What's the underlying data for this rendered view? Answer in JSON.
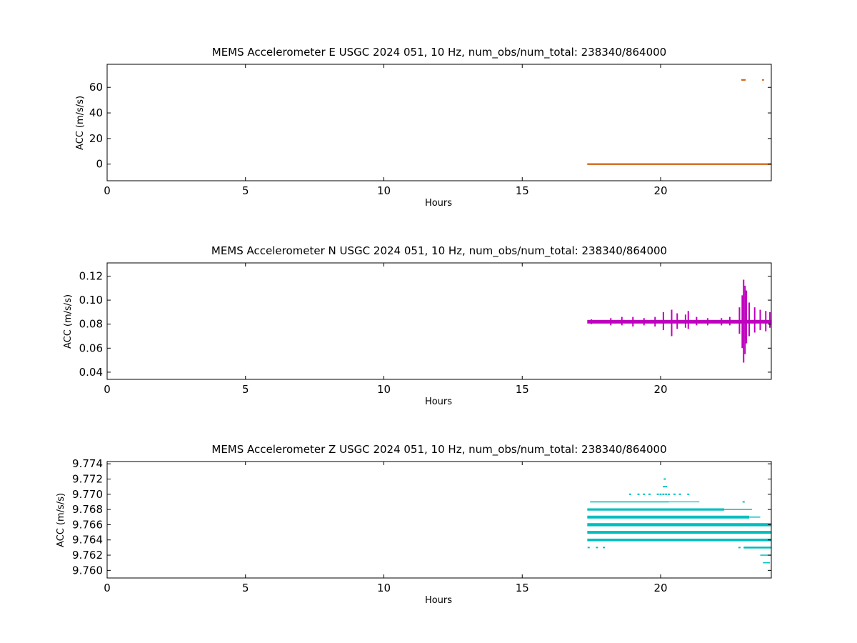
{
  "chart_data": [
    {
      "type": "scatter",
      "title": "MEMS Accelerometer E USGC 2024 051, 10 Hz, num_obs/num_total: 238340/864000",
      "xlabel": "Hours",
      "ylabel": "ACC (m/s/s)",
      "xlim": [
        0,
        24
      ],
      "ylim": [
        -13,
        78
      ],
      "xticks": [
        0,
        5,
        10,
        15,
        20
      ],
      "yticks": [
        0,
        20,
        40,
        60
      ],
      "ytick_labels": [
        "0",
        "20",
        "40",
        "60"
      ],
      "grid": false,
      "color": "#d2691e",
      "series": [
        {
          "bands": [
            {
              "x0": 17.35,
              "x1": 24,
              "y": 0.0,
              "thick": 2.4
            }
          ],
          "points": [
            {
              "x": 22.95,
              "y": 65.8
            },
            {
              "x": 22.98,
              "y": 65.8
            },
            {
              "x": 23.01,
              "y": 65.8
            },
            {
              "x": 23.04,
              "y": 65.8
            },
            {
              "x": 23.7,
              "y": 65.8
            }
          ],
          "values_note": "dense 10 Hz samples, constant near 0 m/s/s from 17.35 h to 24 h"
        }
      ]
    },
    {
      "type": "scatter",
      "title": "MEMS Accelerometer N USGC 2024 051, 10 Hz, num_obs/num_total: 238340/864000",
      "xlabel": "Hours",
      "ylabel": "ACC (m/s/s)",
      "xlim": [
        0,
        24
      ],
      "ylim": [
        0.034,
        0.131
      ],
      "xticks": [
        0,
        5,
        10,
        15,
        20
      ],
      "yticks": [
        0.04,
        0.06,
        0.08,
        0.1,
        0.12
      ],
      "ytick_labels": [
        "0.04",
        "0.06",
        "0.08",
        "0.10",
        "0.12"
      ],
      "grid": false,
      "color": "#bf00bf",
      "series": [
        {
          "bands": [
            {
              "x0": 17.35,
              "x1": 24,
              "y": 0.082,
              "halfwidth": 0.0015
            }
          ],
          "spikes": [
            {
              "x": 17.5,
              "lo": 0.08,
              "hi": 0.084
            },
            {
              "x": 18.2,
              "lo": 0.079,
              "hi": 0.085
            },
            {
              "x": 18.6,
              "lo": 0.079,
              "hi": 0.086
            },
            {
              "x": 19.0,
              "lo": 0.078,
              "hi": 0.086
            },
            {
              "x": 19.4,
              "lo": 0.079,
              "hi": 0.085
            },
            {
              "x": 19.8,
              "lo": 0.078,
              "hi": 0.086
            },
            {
              "x": 20.1,
              "lo": 0.075,
              "hi": 0.09
            },
            {
              "x": 20.4,
              "lo": 0.07,
              "hi": 0.092
            },
            {
              "x": 20.6,
              "lo": 0.076,
              "hi": 0.089
            },
            {
              "x": 20.9,
              "lo": 0.077,
              "hi": 0.088
            },
            {
              "x": 21.0,
              "lo": 0.076,
              "hi": 0.091
            },
            {
              "x": 21.3,
              "lo": 0.079,
              "hi": 0.086
            },
            {
              "x": 21.7,
              "lo": 0.079,
              "hi": 0.085
            },
            {
              "x": 22.2,
              "lo": 0.079,
              "hi": 0.085
            },
            {
              "x": 22.5,
              "lo": 0.079,
              "hi": 0.086
            },
            {
              "x": 22.85,
              "lo": 0.072,
              "hi": 0.094
            },
            {
              "x": 22.95,
              "lo": 0.06,
              "hi": 0.104
            },
            {
              "x": 23.0,
              "lo": 0.048,
              "hi": 0.117
            },
            {
              "x": 23.05,
              "lo": 0.055,
              "hi": 0.112
            },
            {
              "x": 23.1,
              "lo": 0.064,
              "hi": 0.108
            },
            {
              "x": 23.2,
              "lo": 0.07,
              "hi": 0.098
            },
            {
              "x": 23.4,
              "lo": 0.073,
              "hi": 0.094
            },
            {
              "x": 23.6,
              "lo": 0.075,
              "hi": 0.092
            },
            {
              "x": 23.8,
              "lo": 0.074,
              "hi": 0.091
            },
            {
              "x": 23.95,
              "lo": 0.077,
              "hi": 0.09
            }
          ]
        }
      ]
    },
    {
      "type": "scatter",
      "title": "MEMS Accelerometer Z USGC 2024 051, 10 Hz, num_obs/num_total: 238340/864000",
      "xlabel": "Hours",
      "ylabel": "ACC (m/s/s)",
      "xlim": [
        0,
        24
      ],
      "ylim": [
        9.759,
        9.7743
      ],
      "xticks": [
        0,
        5,
        10,
        15,
        20
      ],
      "yticks": [
        9.76,
        9.762,
        9.764,
        9.766,
        9.768,
        9.77,
        9.772,
        9.774
      ],
      "ytick_labels": [
        "9.760",
        "9.762",
        "9.764",
        "9.766",
        "9.768",
        "9.770",
        "9.772",
        "9.774"
      ],
      "grid": false,
      "color": "#00bfbf",
      "series": [
        {
          "bands": [
            {
              "x0": 17.45,
              "x1": 20.3,
              "y": 9.769,
              "thick": 1.6
            },
            {
              "x0": 20.3,
              "x1": 21.4,
              "y": 9.769,
              "thick": 1.2
            },
            {
              "x0": 17.35,
              "x1": 22.3,
              "y": 9.768,
              "thick": 3.2
            },
            {
              "x0": 22.3,
              "x1": 23.3,
              "y": 9.768,
              "thick": 1.5
            },
            {
              "x0": 17.35,
              "x1": 23.2,
              "y": 9.767,
              "thick": 4.0
            },
            {
              "x0": 23.2,
              "x1": 23.6,
              "y": 9.767,
              "thick": 1.5
            },
            {
              "x0": 17.35,
              "x1": 24,
              "y": 9.766,
              "thick": 4.4
            },
            {
              "x0": 17.35,
              "x1": 24,
              "y": 9.765,
              "thick": 4.0
            },
            {
              "x0": 17.35,
              "x1": 24,
              "y": 9.764,
              "thick": 3.6
            },
            {
              "x0": 23.0,
              "x1": 24,
              "y": 9.763,
              "thick": 2.6
            },
            {
              "x0": 23.6,
              "x1": 24,
              "y": 9.762,
              "thick": 1.5
            },
            {
              "x0": 23.7,
              "x1": 23.95,
              "y": 9.761,
              "thick": 1.5
            }
          ],
          "points": [
            {
              "x": 17.4,
              "y": 9.763
            },
            {
              "x": 17.7,
              "y": 9.763
            },
            {
              "x": 17.95,
              "y": 9.763
            },
            {
              "x": 18.9,
              "y": 9.77
            },
            {
              "x": 19.2,
              "y": 9.77
            },
            {
              "x": 19.4,
              "y": 9.77
            },
            {
              "x": 19.6,
              "y": 9.77
            },
            {
              "x": 19.9,
              "y": 9.77
            },
            {
              "x": 20.0,
              "y": 9.77
            },
            {
              "x": 20.1,
              "y": 9.77
            },
            {
              "x": 20.2,
              "y": 9.77
            },
            {
              "x": 20.3,
              "y": 9.77
            },
            {
              "x": 20.5,
              "y": 9.77
            },
            {
              "x": 20.7,
              "y": 9.77
            },
            {
              "x": 21.0,
              "y": 9.77
            },
            {
              "x": 20.12,
              "y": 9.771
            },
            {
              "x": 20.2,
              "y": 9.771
            },
            {
              "x": 20.15,
              "y": 9.772
            },
            {
              "x": 22.85,
              "y": 9.763
            },
            {
              "x": 23.0,
              "y": 9.769
            }
          ]
        }
      ]
    }
  ]
}
